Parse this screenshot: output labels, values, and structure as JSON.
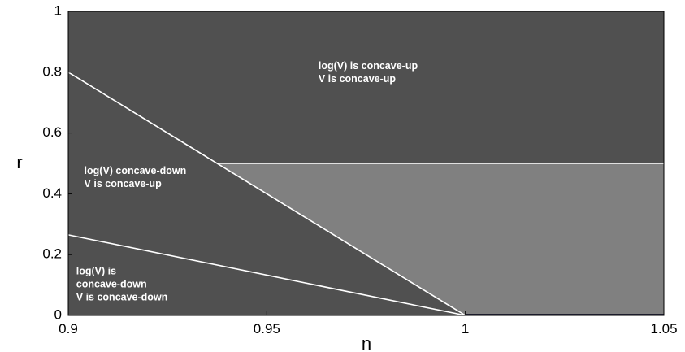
{
  "chart_data": {
    "type": "area",
    "title": "",
    "xlabel": "n",
    "ylabel": "r",
    "xlim": [
      0.9,
      1.05
    ],
    "ylim": [
      0,
      1
    ],
    "x_ticks": [
      {
        "value": 0.9,
        "label": "0.9"
      },
      {
        "value": 0.95,
        "label": "0.95"
      },
      {
        "value": 1,
        "label": "1"
      },
      {
        "value": 1.05,
        "label": "1.05"
      }
    ],
    "y_ticks": [
      {
        "value": 0,
        "label": "0"
      },
      {
        "value": 0.2,
        "label": "0.2"
      },
      {
        "value": 0.4,
        "label": "0.4"
      },
      {
        "value": 0.6,
        "label": "0.6"
      },
      {
        "value": 0.8,
        "label": "0.8"
      },
      {
        "value": 1,
        "label": "1"
      }
    ],
    "grid": false,
    "colors": {
      "dark_region": "#505050",
      "light_region": "#808080",
      "boundary": "#ffffff"
    },
    "boundaries": [
      {
        "points": [
          [
            0.9,
            0.8
          ],
          [
            1.0,
            0.0
          ]
        ]
      },
      {
        "points": [
          [
            0.9,
            0.265
          ],
          [
            1.0,
            0.0
          ]
        ]
      },
      {
        "points": [
          [
            0.9375,
            0.5
          ],
          [
            1.05,
            0.5
          ]
        ]
      }
    ],
    "light_region": {
      "points": [
        [
          0.9375,
          0.5
        ],
        [
          1.05,
          0.5
        ],
        [
          1.05,
          0.0
        ],
        [
          1.0,
          0.0
        ]
      ]
    },
    "annotations": [
      {
        "lines": [
          "log(V) is concave-up",
          "V is concave-up"
        ],
        "x": 0.963,
        "y": 0.81
      },
      {
        "lines": [
          "log(V) concave-down",
          "V is concave-up"
        ],
        "x": 0.904,
        "y": 0.465
      },
      {
        "lines": [
          "log(V) is",
          "concave-down",
          "V is concave-down"
        ],
        "x": 0.902,
        "y": 0.135
      }
    ]
  }
}
